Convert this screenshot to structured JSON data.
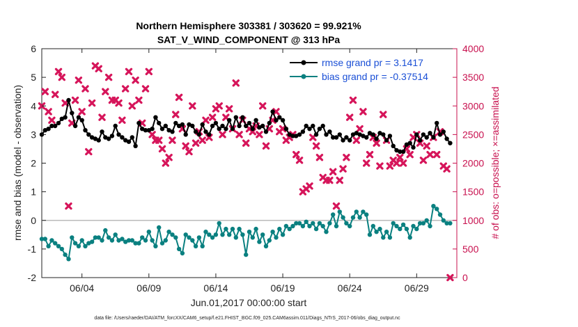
{
  "chart_data": {
    "type": "line",
    "title_line1": "Northern Hemisphere 303381 / 303620 = 99.921%",
    "title_line2": "SAT_V_WIND_COMPONENT @ 313 hPa",
    "ylabel_left": "rmse and bias (model - observation)",
    "ylabel_right": "# of obs: o=possible; ×=assimilated",
    "xlabel": "Jun.01,2017 00:00:00 start",
    "footnote": "data file: /Users/raeder/DAI/ATM_forcXX/CAM6_setup/f.e21.FHIST_BGC.f09_025.CAM6assim.011/Diags_NTrS_2017-06/obs_diag_output.nc",
    "xlim": [
      1,
      32
    ],
    "ylim_left": [
      -2,
      6
    ],
    "ylim_right": [
      0,
      4000
    ],
    "yticks_left": [
      -2,
      -1,
      0,
      1,
      2,
      3,
      4,
      5,
      6
    ],
    "yticks_left_labels": [
      "-2",
      "-1",
      "0",
      "1",
      "2",
      "3",
      "4",
      "5",
      "6"
    ],
    "yticks_right": [
      0,
      500,
      1000,
      1500,
      2000,
      2500,
      3000,
      3500,
      4000
    ],
    "yticks_right_labels": [
      "0",
      "500",
      "1000",
      "1500",
      "2000",
      "2500",
      "3000",
      "3500",
      "4000"
    ],
    "xticks": [
      4,
      9,
      14,
      19,
      24,
      29
    ],
    "xtick_labels": [
      "06/04",
      "06/09",
      "06/14",
      "06/19",
      "06/24",
      "06/29"
    ],
    "colors": {
      "rmse": "#000000",
      "bias": "#0a8080",
      "obs": "#d6155a",
      "zero_line": "#bbbbbb",
      "legend_text": "#1a4fd6",
      "right_axis": "#c8104e"
    },
    "legend": [
      {
        "name": "rmse grand pr = 3.1417"
      },
      {
        "name": "bias grand pr = -0.37514"
      }
    ],
    "legend_position": "top-right",
    "rmse": [
      [
        1.0,
        3.0
      ],
      [
        1.25,
        3.15
      ],
      [
        1.5,
        3.2
      ],
      [
        1.75,
        3.3
      ],
      [
        2.0,
        3.3
      ],
      [
        2.25,
        3.4
      ],
      [
        2.5,
        3.55
      ],
      [
        2.75,
        3.6
      ],
      [
        3.0,
        4.2
      ],
      [
        3.25,
        3.75
      ],
      [
        3.5,
        3.3
      ],
      [
        3.75,
        3.6
      ],
      [
        4.0,
        3.5
      ],
      [
        4.25,
        3.15
      ],
      [
        4.5,
        3.0
      ],
      [
        4.75,
        2.9
      ],
      [
        5.0,
        2.85
      ],
      [
        5.25,
        2.8
      ],
      [
        5.5,
        3.1
      ],
      [
        5.75,
        2.9
      ],
      [
        6.0,
        2.85
      ],
      [
        6.25,
        2.95
      ],
      [
        6.5,
        3.3
      ],
      [
        6.75,
        3.0
      ],
      [
        7.0,
        2.9
      ],
      [
        7.25,
        2.8
      ],
      [
        7.5,
        2.75
      ],
      [
        7.75,
        2.9
      ],
      [
        8.0,
        2.6
      ],
      [
        8.25,
        3.4
      ],
      [
        8.5,
        3.2
      ],
      [
        8.75,
        3.15
      ],
      [
        9.0,
        3.15
      ],
      [
        9.25,
        3.2
      ],
      [
        9.5,
        3.6
      ],
      [
        9.75,
        3.4
      ],
      [
        10.0,
        3.2
      ],
      [
        10.25,
        3.3
      ],
      [
        10.5,
        3.15
      ],
      [
        10.75,
        3.1
      ],
      [
        11.0,
        3.4
      ],
      [
        11.25,
        3.3
      ],
      [
        11.5,
        3.35
      ],
      [
        11.75,
        3.0
      ],
      [
        12.0,
        3.35
      ],
      [
        12.25,
        3.3
      ],
      [
        12.5,
        3.1
      ],
      [
        12.75,
        3.0
      ],
      [
        13.0,
        3.35
      ],
      [
        13.25,
        3.1
      ],
      [
        13.5,
        3.0
      ],
      [
        13.75,
        3.3
      ],
      [
        14.0,
        3.4
      ],
      [
        14.25,
        3.2
      ],
      [
        14.5,
        3.3
      ],
      [
        14.75,
        3.2
      ],
      [
        15.0,
        3.5
      ],
      [
        15.25,
        3.2
      ],
      [
        15.5,
        3.6
      ],
      [
        15.75,
        3.3
      ],
      [
        16.0,
        3.6
      ],
      [
        16.25,
        3.3
      ],
      [
        16.5,
        3.4
      ],
      [
        16.75,
        3.2
      ],
      [
        17.0,
        3.5
      ],
      [
        17.25,
        3.25
      ],
      [
        17.5,
        3.3
      ],
      [
        17.75,
        3.1
      ],
      [
        18.0,
        3.4
      ],
      [
        18.25,
        3.8
      ],
      [
        18.5,
        3.5
      ],
      [
        18.75,
        3.6
      ],
      [
        19.0,
        3.5
      ],
      [
        19.25,
        3.2
      ],
      [
        19.5,
        3.0
      ],
      [
        19.75,
        2.95
      ],
      [
        20.0,
        2.95
      ],
      [
        20.25,
        3.0
      ],
      [
        20.5,
        3.1
      ],
      [
        20.75,
        3.3
      ],
      [
        21.0,
        3.2
      ],
      [
        21.25,
        3.3
      ],
      [
        21.5,
        3.0
      ],
      [
        21.75,
        3.2
      ],
      [
        22.0,
        3.3
      ],
      [
        22.25,
        3.0
      ],
      [
        22.5,
        3.1
      ],
      [
        22.75,
        2.9
      ],
      [
        23.0,
        2.9
      ],
      [
        23.25,
        3.0
      ],
      [
        23.5,
        2.8
      ],
      [
        23.75,
        2.9
      ],
      [
        24.0,
        2.8
      ],
      [
        24.25,
        3.0
      ],
      [
        24.5,
        3.05
      ],
      [
        24.75,
        3.0
      ],
      [
        25.0,
        2.95
      ],
      [
        25.25,
        2.9
      ],
      [
        25.5,
        3.05
      ],
      [
        25.75,
        3.0
      ],
      [
        26.0,
        2.85
      ],
      [
        26.25,
        3.05
      ],
      [
        26.5,
        3.0
      ],
      [
        26.75,
        2.8
      ],
      [
        27.0,
        2.95
      ],
      [
        27.25,
        2.6
      ],
      [
        27.5,
        2.45
      ],
      [
        27.75,
        2.4
      ],
      [
        28.0,
        2.4
      ],
      [
        28.25,
        2.65
      ],
      [
        28.5,
        2.7
      ],
      [
        28.75,
        2.55
      ],
      [
        29.0,
        3.0
      ],
      [
        29.25,
        2.8
      ],
      [
        29.5,
        3.0
      ],
      [
        29.75,
        2.9
      ],
      [
        30.0,
        3.05
      ],
      [
        30.25,
        2.9
      ],
      [
        30.5,
        3.4
      ],
      [
        30.75,
        3.0
      ],
      [
        31.0,
        3.1
      ],
      [
        31.25,
        2.85
      ],
      [
        31.5,
        2.7
      ]
    ],
    "bias": [
      [
        1.0,
        -0.65
      ],
      [
        1.25,
        -0.65
      ],
      [
        1.5,
        -0.9
      ],
      [
        1.75,
        -0.7
      ],
      [
        2.0,
        -0.8
      ],
      [
        2.25,
        -0.9
      ],
      [
        2.5,
        -1.0
      ],
      [
        2.75,
        -1.2
      ],
      [
        3.0,
        -1.35
      ],
      [
        3.25,
        -0.6
      ],
      [
        3.5,
        -0.8
      ],
      [
        3.75,
        -0.9
      ],
      [
        4.0,
        -0.7
      ],
      [
        4.25,
        -0.9
      ],
      [
        4.5,
        -0.8
      ],
      [
        4.75,
        -0.75
      ],
      [
        5.0,
        -0.6
      ],
      [
        5.25,
        -0.6
      ],
      [
        5.5,
        -0.7
      ],
      [
        5.75,
        -0.35
      ],
      [
        6.0,
        -0.6
      ],
      [
        6.25,
        -0.7
      ],
      [
        6.5,
        -0.5
      ],
      [
        6.75,
        -0.7
      ],
      [
        7.0,
        -0.65
      ],
      [
        7.25,
        -0.75
      ],
      [
        7.5,
        -0.7
      ],
      [
        7.75,
        -0.7
      ],
      [
        8.0,
        -0.8
      ],
      [
        8.25,
        -0.8
      ],
      [
        8.5,
        -0.6
      ],
      [
        8.75,
        -0.7
      ],
      [
        9.0,
        -0.4
      ],
      [
        9.25,
        -0.7
      ],
      [
        9.5,
        -0.9
      ],
      [
        9.75,
        -0.25
      ],
      [
        10.0,
        -0.8
      ],
      [
        10.25,
        -0.7
      ],
      [
        10.5,
        -0.4
      ],
      [
        10.75,
        -0.5
      ],
      [
        11.0,
        -0.6
      ],
      [
        11.25,
        -1.0
      ],
      [
        11.5,
        -1.15
      ],
      [
        11.75,
        -0.5
      ],
      [
        12.0,
        -0.6
      ],
      [
        12.25,
        -0.7
      ],
      [
        12.5,
        -0.9
      ],
      [
        12.75,
        -0.6
      ],
      [
        13.0,
        -0.9
      ],
      [
        13.25,
        -0.4
      ],
      [
        13.5,
        -0.5
      ],
      [
        13.75,
        -0.6
      ],
      [
        14.0,
        -0.5
      ],
      [
        14.25,
        -0.1
      ],
      [
        14.5,
        -0.5
      ],
      [
        14.75,
        -0.3
      ],
      [
        15.0,
        -0.5
      ],
      [
        15.25,
        -0.3
      ],
      [
        15.5,
        -0.6
      ],
      [
        15.75,
        -0.3
      ],
      [
        16.0,
        -0.5
      ],
      [
        16.25,
        -1.2
      ],
      [
        16.5,
        -0.4
      ],
      [
        16.75,
        -0.6
      ],
      [
        17.0,
        -0.3
      ],
      [
        17.25,
        -0.75
      ],
      [
        17.5,
        -0.5
      ],
      [
        17.75,
        -0.9
      ],
      [
        18.0,
        -0.7
      ],
      [
        18.25,
        -0.4
      ],
      [
        18.5,
        -0.6
      ],
      [
        18.75,
        -0.3
      ],
      [
        19.0,
        -0.5
      ],
      [
        19.25,
        -0.2
      ],
      [
        19.5,
        -0.3
      ],
      [
        19.75,
        -0.2
      ],
      [
        20.0,
        -0.1
      ],
      [
        20.25,
        -0.1
      ],
      [
        20.5,
        -0.2
      ],
      [
        20.75,
        -0.05
      ],
      [
        21.0,
        -0.2
      ],
      [
        21.25,
        -0.1
      ],
      [
        21.5,
        -0.3
      ],
      [
        21.75,
        -0.1
      ],
      [
        22.0,
        -0.2
      ],
      [
        22.25,
        -0.4
      ],
      [
        22.5,
        -0.1
      ],
      [
        22.75,
        0.2
      ],
      [
        23.0,
        -0.2
      ],
      [
        23.25,
        0.3
      ],
      [
        23.5,
        0.1
      ],
      [
        23.75,
        -0.1
      ],
      [
        24.0,
        -0.2
      ],
      [
        24.25,
        0.1
      ],
      [
        24.5,
        0.3
      ],
      [
        24.75,
        0.1
      ],
      [
        25.0,
        0.3
      ],
      [
        25.25,
        0.2
      ],
      [
        25.5,
        -0.5
      ],
      [
        25.75,
        -0.2
      ],
      [
        26.0,
        -0.4
      ],
      [
        26.25,
        -0.3
      ],
      [
        26.5,
        -0.6
      ],
      [
        26.75,
        -0.4
      ],
      [
        27.0,
        -0.6
      ],
      [
        27.25,
        -0.1
      ],
      [
        27.5,
        -0.2
      ],
      [
        27.75,
        -0.3
      ],
      [
        28.0,
        -0.15
      ],
      [
        28.25,
        -0.3
      ],
      [
        28.5,
        -0.6
      ],
      [
        28.75,
        -0.2
      ],
      [
        29.0,
        -0.3
      ],
      [
        29.25,
        -0.1
      ],
      [
        29.5,
        -0.1
      ],
      [
        29.75,
        0.0
      ],
      [
        30.0,
        -0.2
      ],
      [
        30.25,
        0.5
      ],
      [
        30.5,
        0.4
      ],
      [
        30.75,
        0.2
      ],
      [
        31.0,
        0.0
      ],
      [
        31.25,
        -0.1
      ],
      [
        31.5,
        -0.1
      ]
    ],
    "obs_assimilated": [
      [
        1.0,
        3000
      ],
      [
        1.25,
        3250
      ],
      [
        1.5,
        2900
      ],
      [
        1.75,
        2750
      ],
      [
        2.0,
        3200
      ],
      [
        2.25,
        3600
      ],
      [
        2.5,
        3500
      ],
      [
        2.75,
        3050
      ],
      [
        3.0,
        1250
      ],
      [
        3.25,
        2700
      ],
      [
        3.5,
        3100
      ],
      [
        3.75,
        3450
      ],
      [
        4.0,
        2900
      ],
      [
        4.25,
        3300
      ],
      [
        4.5,
        2200
      ],
      [
        4.75,
        3050
      ],
      [
        5.0,
        3700
      ],
      [
        5.25,
        3650
      ],
      [
        5.5,
        2800
      ],
      [
        5.75,
        3250
      ],
      [
        6.0,
        3500
      ],
      [
        6.25,
        3100
      ],
      [
        6.5,
        3100
      ],
      [
        6.75,
        3050
      ],
      [
        7.0,
        2750
      ],
      [
        7.25,
        3300
      ],
      [
        7.5,
        3600
      ],
      [
        7.75,
        3000
      ],
      [
        8.0,
        3450
      ],
      [
        8.25,
        3100
      ],
      [
        8.5,
        2700
      ],
      [
        8.75,
        3300
      ],
      [
        9.0,
        3600
      ],
      [
        9.25,
        2500
      ],
      [
        9.5,
        2400
      ],
      [
        9.75,
        2400
      ],
      [
        10.0,
        2250
      ],
      [
        10.25,
        2000
      ],
      [
        10.5,
        2100
      ],
      [
        10.75,
        2400
      ],
      [
        11.0,
        2850
      ],
      [
        11.25,
        3150
      ],
      [
        11.5,
        2600
      ],
      [
        11.75,
        2300
      ],
      [
        12.0,
        2200
      ],
      [
        12.25,
        3000
      ],
      [
        12.5,
        2350
      ],
      [
        12.75,
        2550
      ],
      [
        13.0,
        2400
      ],
      [
        13.25,
        2750
      ],
      [
        13.5,
        2450
      ],
      [
        13.75,
        2800
      ],
      [
        14.0,
        2950
      ],
      [
        14.25,
        3000
      ],
      [
        14.5,
        2500
      ],
      [
        14.75,
        2800
      ],
      [
        15.0,
        2950
      ],
      [
        15.25,
        2600
      ],
      [
        15.5,
        3400
      ],
      [
        15.75,
        2500
      ],
      [
        16.0,
        2750
      ],
      [
        16.25,
        2350
      ],
      [
        16.5,
        2600
      ],
      [
        16.75,
        2550
      ],
      [
        17.0,
        2650
      ],
      [
        17.25,
        2500
      ],
      [
        17.5,
        3000
      ],
      [
        17.75,
        2300
      ],
      [
        18.0,
        2600
      ],
      [
        18.25,
        2750
      ],
      [
        18.5,
        2900
      ],
      [
        18.75,
        2550
      ],
      [
        19.0,
        2600
      ],
      [
        19.25,
        2400
      ],
      [
        19.5,
        2450
      ],
      [
        19.75,
        2500
      ],
      [
        20.0,
        2150
      ],
      [
        20.25,
        2050
      ],
      [
        20.5,
        1500
      ],
      [
        20.75,
        1550
      ],
      [
        21.0,
        1600
      ],
      [
        21.25,
        2450
      ],
      [
        21.5,
        2300
      ],
      [
        21.75,
        2100
      ],
      [
        22.0,
        1750
      ],
      [
        22.25,
        1700
      ],
      [
        22.5,
        1700
      ],
      [
        22.75,
        1850
      ],
      [
        23.0,
        1250
      ],
      [
        23.25,
        1700
      ],
      [
        23.5,
        1900
      ],
      [
        23.75,
        2100
      ],
      [
        24.0,
        2800
      ],
      [
        24.25,
        3100
      ],
      [
        24.5,
        2400
      ],
      [
        24.75,
        2600
      ],
      [
        25.0,
        2900
      ],
      [
        25.25,
        2000
      ],
      [
        25.5,
        2150
      ],
      [
        25.75,
        2450
      ],
      [
        26.0,
        2350
      ],
      [
        26.25,
        1950
      ],
      [
        26.5,
        2850
      ],
      [
        26.75,
        2400
      ],
      [
        27.0,
        1950
      ],
      [
        27.25,
        2050
      ],
      [
        27.5,
        2000
      ],
      [
        27.75,
        2100
      ],
      [
        28.0,
        2000
      ],
      [
        28.25,
        2250
      ],
      [
        28.5,
        2150
      ],
      [
        28.75,
        2450
      ],
      [
        29.0,
        2500
      ],
      [
        29.25,
        2350
      ],
      [
        29.5,
        2050
      ],
      [
        29.75,
        2300
      ],
      [
        30.0,
        2150
      ],
      [
        30.25,
        2450
      ],
      [
        30.5,
        2150
      ],
      [
        30.75,
        2550
      ],
      [
        31.0,
        1950
      ],
      [
        31.25,
        1900
      ],
      [
        31.5,
        0
      ]
    ]
  }
}
